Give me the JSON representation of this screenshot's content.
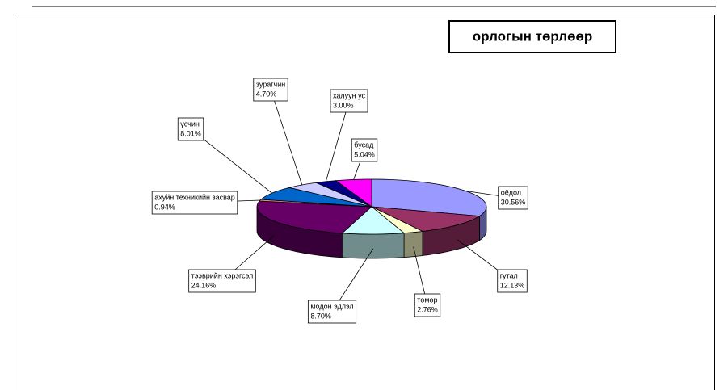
{
  "chart_data": {
    "type": "pie3d",
    "title": "орлогын төрлөөр",
    "categories": [
      "оёдол",
      "гутал",
      "төмөр",
      "модон эдлэл",
      "тээврийн хэрэгсэл",
      "ахуйн техникийн засвар",
      "үсчин",
      "зурагчин",
      "халуун ус",
      "бусад"
    ],
    "values": [
      30.56,
      12.13,
      2.76,
      8.7,
      24.16,
      0.94,
      8.01,
      4.7,
      3.0,
      5.04
    ],
    "value_labels": [
      "30.56%",
      "12.13%",
      "2.76%",
      "8.70%",
      "24.16%",
      "0.94%",
      "8.01%",
      "4.70%",
      "3.00%",
      "5.04%"
    ],
    "colors": [
      "#9999ff",
      "#993366",
      "#ffffcc",
      "#ccffff",
      "#660066",
      "#ff8080",
      "#0066cc",
      "#ccccff",
      "#000080",
      "#ff00ff"
    ]
  }
}
